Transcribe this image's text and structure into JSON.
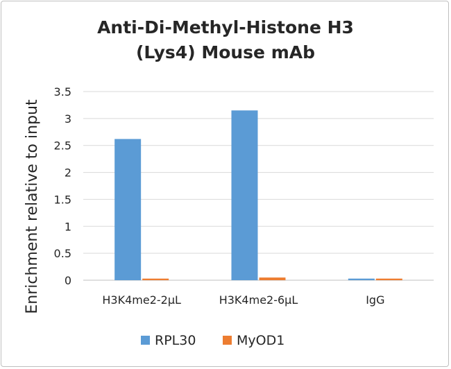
{
  "chart_data": {
    "type": "bar",
    "title_lines": [
      "Anti-Di-Methyl-Histone H3",
      "(Lys4) Mouse mAb"
    ],
    "ylabel": "Enrichment relative to input",
    "xlabel": "",
    "categories": [
      "H3K4me2-2µL",
      "H3K4me2-6µL",
      "IgG"
    ],
    "series": [
      {
        "name": "RPL30",
        "color": "#5b9bd5",
        "values": [
          2.62,
          3.15,
          0.03
        ]
      },
      {
        "name": "MyOD1",
        "color": "#ed7d31",
        "values": [
          0.03,
          0.05,
          0.03
        ]
      }
    ],
    "ylim": [
      0,
      3.5
    ],
    "yticks": [
      "0",
      "0.5",
      "1",
      "1.5",
      "2",
      "2.5",
      "3",
      "3.5"
    ],
    "grid": true,
    "legend_position": "bottom"
  }
}
